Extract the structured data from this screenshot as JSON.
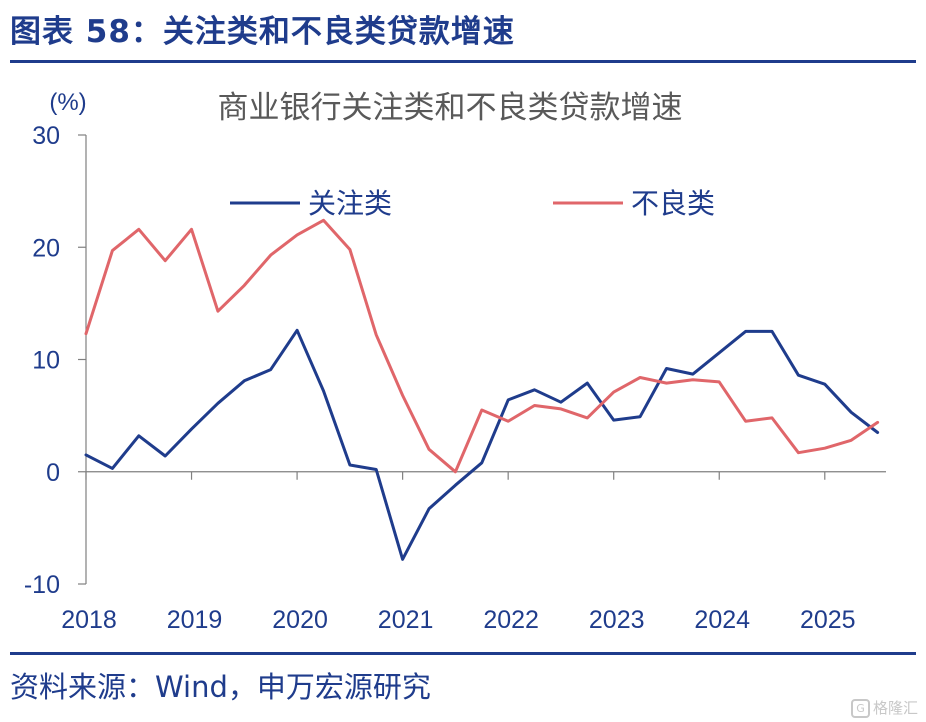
{
  "header": {
    "figure_title": "图表 58：关注类和不良类贷款增速"
  },
  "footer": {
    "source": "资料来源：Wind，申万宏源研究",
    "watermark": "格隆汇"
  },
  "colors": {
    "brand": "#1F3C8C",
    "series_attention": "#1F3C8C",
    "series_npl": "#E0666A",
    "title_gray": "#595959"
  },
  "chart_data": {
    "type": "line",
    "title": "商业银行关注类和不良类贷款增速",
    "ylabel": "(%)",
    "xlabel": "",
    "ylim": [
      -10,
      30
    ],
    "yticks": [
      -10,
      0,
      10,
      20,
      30
    ],
    "xlim": [
      2018.0,
      2025.58
    ],
    "xticks": [
      2018,
      2019,
      2020,
      2021,
      2022,
      2023,
      2024,
      2025
    ],
    "legend_position": "top",
    "grid": false,
    "x": [
      2018.0,
      2018.25,
      2018.5,
      2018.75,
      2019.0,
      2019.25,
      2019.5,
      2019.75,
      2020.0,
      2020.25,
      2020.5,
      2020.75,
      2021.0,
      2021.25,
      2021.5,
      2021.75,
      2022.0,
      2022.25,
      2022.5,
      2022.75,
      2023.0,
      2023.25,
      2023.5,
      2023.75,
      2024.0,
      2024.25,
      2024.5,
      2024.75,
      2025.0,
      2025.25,
      2025.5
    ],
    "series": [
      {
        "name": "关注类",
        "color": "#1F3C8C",
        "values": [
          1.5,
          0.3,
          3.2,
          1.4,
          3.8,
          6.1,
          8.1,
          9.1,
          12.6,
          7.2,
          0.6,
          0.2,
          -7.8,
          -3.3,
          -1.2,
          0.8,
          6.4,
          7.3,
          6.2,
          7.9,
          4.6,
          4.9,
          9.2,
          8.7,
          10.6,
          12.5,
          12.5,
          8.6,
          7.8,
          5.3,
          3.5
        ]
      },
      {
        "name": "不良类",
        "color": "#E0666A",
        "values": [
          12.3,
          19.7,
          21.6,
          18.8,
          21.6,
          14.3,
          16.6,
          19.3,
          21.1,
          22.4,
          19.8,
          12.2,
          6.8,
          2.0,
          0.0,
          5.5,
          4.5,
          5.9,
          5.6,
          4.8,
          7.1,
          8.4,
          7.9,
          8.2,
          8.0,
          4.5,
          4.8,
          1.7,
          2.1,
          2.8,
          4.4
        ]
      }
    ]
  }
}
